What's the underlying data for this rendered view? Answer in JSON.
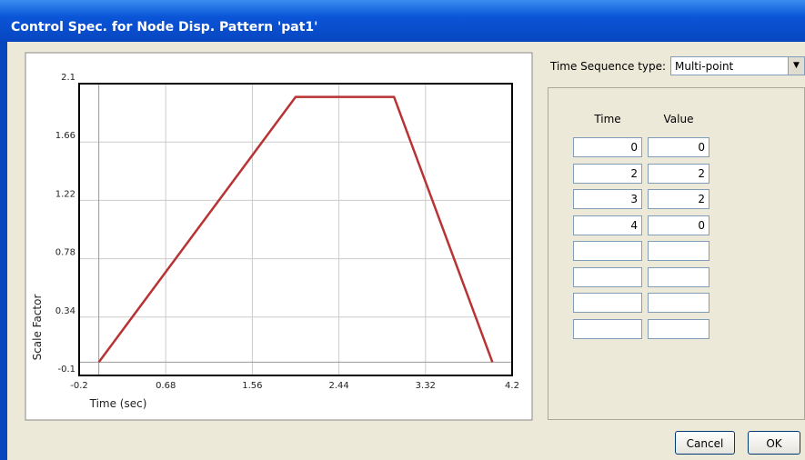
{
  "window_title": "Control Spec. for Node Disp. Pattern 'pat1'",
  "chart_data": {
    "type": "line",
    "xlabel": "Time (sec)",
    "ylabel": "Scale Factor",
    "x": [
      0,
      2,
      3,
      4
    ],
    "values": [
      0,
      2,
      2,
      0
    ],
    "color": "#b83333",
    "xlim": [
      -0.2,
      4.2
    ],
    "xticks": [
      -0.2,
      0.68,
      1.56,
      2.44,
      3.32,
      4.2
    ],
    "ylim": [
      -0.1,
      2.1
    ],
    "yticks": [
      -0.1,
      0.34,
      0.78,
      1.22,
      1.66,
      2.1
    ],
    "grid": true
  },
  "sequence_type_label": "Time Sequence type:",
  "sequence_type": "Multi-point",
  "table": {
    "headers": [
      "Time",
      "Value"
    ],
    "rows": [
      [
        0,
        0
      ],
      [
        2,
        2
      ],
      [
        3,
        2
      ],
      [
        4,
        0
      ]
    ]
  },
  "buttons": [
    "Cancel",
    "OK"
  ]
}
